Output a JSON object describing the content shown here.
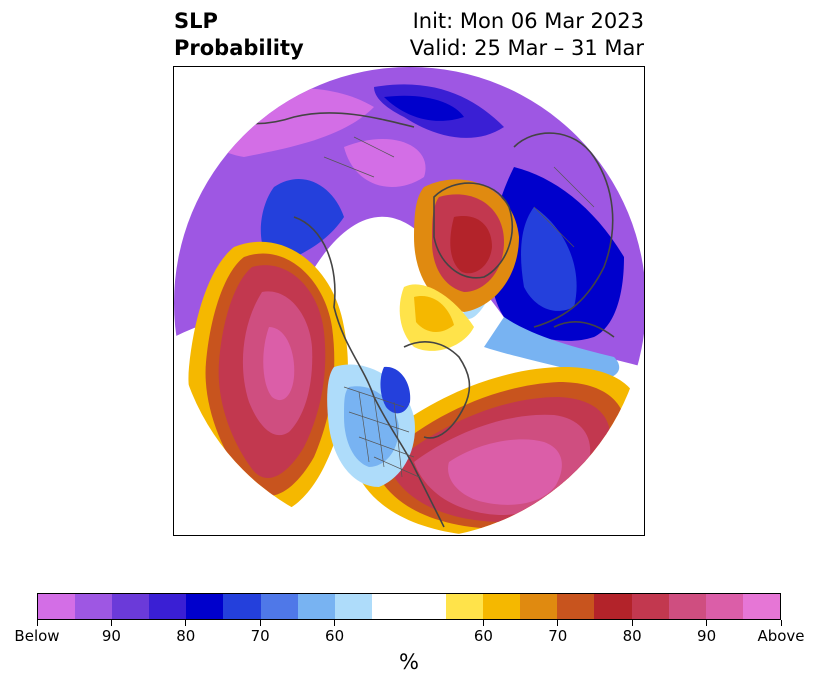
{
  "title": {
    "left_line1": "SLP",
    "left_line2": "Probability",
    "right_line1": "Init: Mon 06 Mar 2023",
    "right_line2": "Valid: 25 Mar – 31 Mar"
  },
  "colorbar": {
    "colors": [
      "#d36ee6",
      "#9e57e3",
      "#6b3ad9",
      "#3a1fd4",
      "#0000cc",
      "#2440dc",
      "#4f78e8",
      "#78b3f2",
      "#aedcfa",
      "#ffffff",
      "#ffffff",
      "#ffe34a",
      "#f5b800",
      "#e08a10",
      "#c8541e",
      "#b3232a",
      "#c2384f",
      "#cf4e80",
      "#db5ea8",
      "#e676d6"
    ],
    "tick_labels": [
      "Below",
      "90",
      "80",
      "70",
      "60",
      "60",
      "70",
      "80",
      "90",
      "Above"
    ],
    "unit": "%"
  },
  "map": {
    "projection": "north-polar-stereographic",
    "field": "SLP probability anomaly"
  }
}
